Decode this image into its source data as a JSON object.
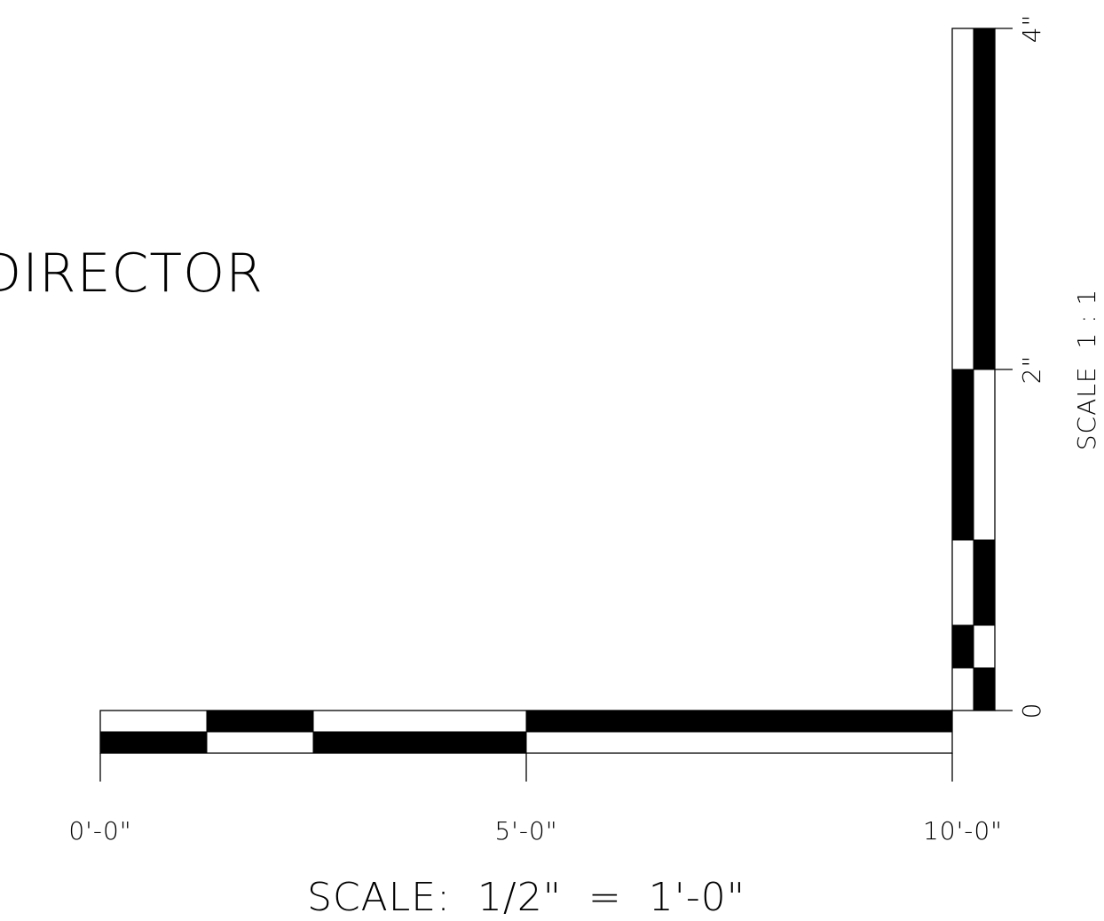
{
  "title_fragment": "DIRECTOR",
  "horizontal_scale": {
    "labels": [
      "0'-0\"",
      "5'-0\"",
      "10'-0\""
    ],
    "caption": "SCALE:  1/2\"  =  1'-0\"",
    "unit": "ft",
    "top_row_fill": [
      false,
      true,
      false,
      true
    ],
    "bottom_row_fill": [
      true,
      false,
      true,
      false
    ],
    "segment_edges_ft": [
      0,
      1.25,
      2.5,
      5,
      10
    ]
  },
  "vertical_scale": {
    "labels": [
      "0",
      "2\"",
      "4\""
    ],
    "caption": "SCALE  1 : 1",
    "unit": "in",
    "segment_edges_in": [
      0,
      0.25,
      0.5,
      1,
      2,
      4
    ],
    "left_col_fill": [
      false,
      true,
      false,
      true,
      false
    ],
    "right_col_fill": [
      true,
      false,
      true,
      false,
      true
    ]
  },
  "colors": {
    "ink": "#000000",
    "paper": "#ffffff"
  }
}
